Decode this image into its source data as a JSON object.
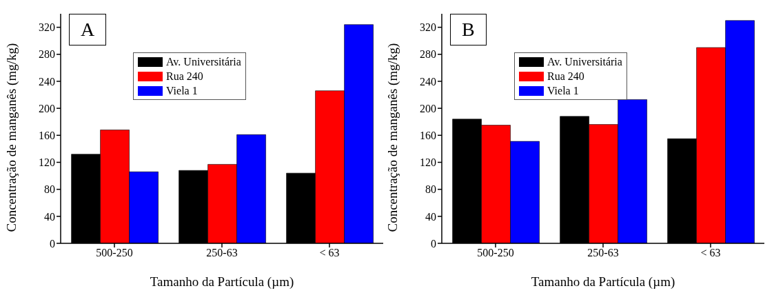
{
  "chart_data": [
    {
      "type": "bar",
      "annotations": [
        "A"
      ],
      "xlabel": "Tamanho da Partícula (µm)",
      "ylabel": "Concentração de manganês (mg/kg)",
      "categories": [
        "500-250",
        "250-63",
        "< 63"
      ],
      "series": [
        {
          "name": "Av. Universitária",
          "color": "#000000",
          "values": [
            132,
            108,
            104
          ]
        },
        {
          "name": "Rua 240",
          "color": "#ff0000",
          "values": [
            168,
            117,
            226
          ]
        },
        {
          "name": "Viela 1",
          "color": "#0000ff",
          "values": [
            106,
            161,
            324
          ]
        }
      ],
      "ylim": [
        0,
        340
      ],
      "yticks": [
        0,
        40,
        80,
        120,
        160,
        200,
        240,
        280,
        320
      ],
      "legend": "top",
      "grid": false
    },
    {
      "type": "bar",
      "annotations": [
        "B"
      ],
      "xlabel": "Tamanho da Partícula (µm)",
      "ylabel": "Concentração de manganês (mg/kg)",
      "categories": [
        "500-250",
        "250-63",
        "< 63"
      ],
      "series": [
        {
          "name": "Av. Universitária",
          "color": "#000000",
          "values": [
            184,
            188,
            155
          ]
        },
        {
          "name": "Rua 240",
          "color": "#ff0000",
          "values": [
            175,
            176,
            290
          ]
        },
        {
          "name": "Viela 1",
          "color": "#0000ff",
          "values": [
            151,
            213,
            330
          ]
        }
      ],
      "ylim": [
        0,
        340
      ],
      "yticks": [
        0,
        40,
        80,
        120,
        160,
        200,
        240,
        280,
        320
      ],
      "legend": "top",
      "grid": false
    }
  ]
}
